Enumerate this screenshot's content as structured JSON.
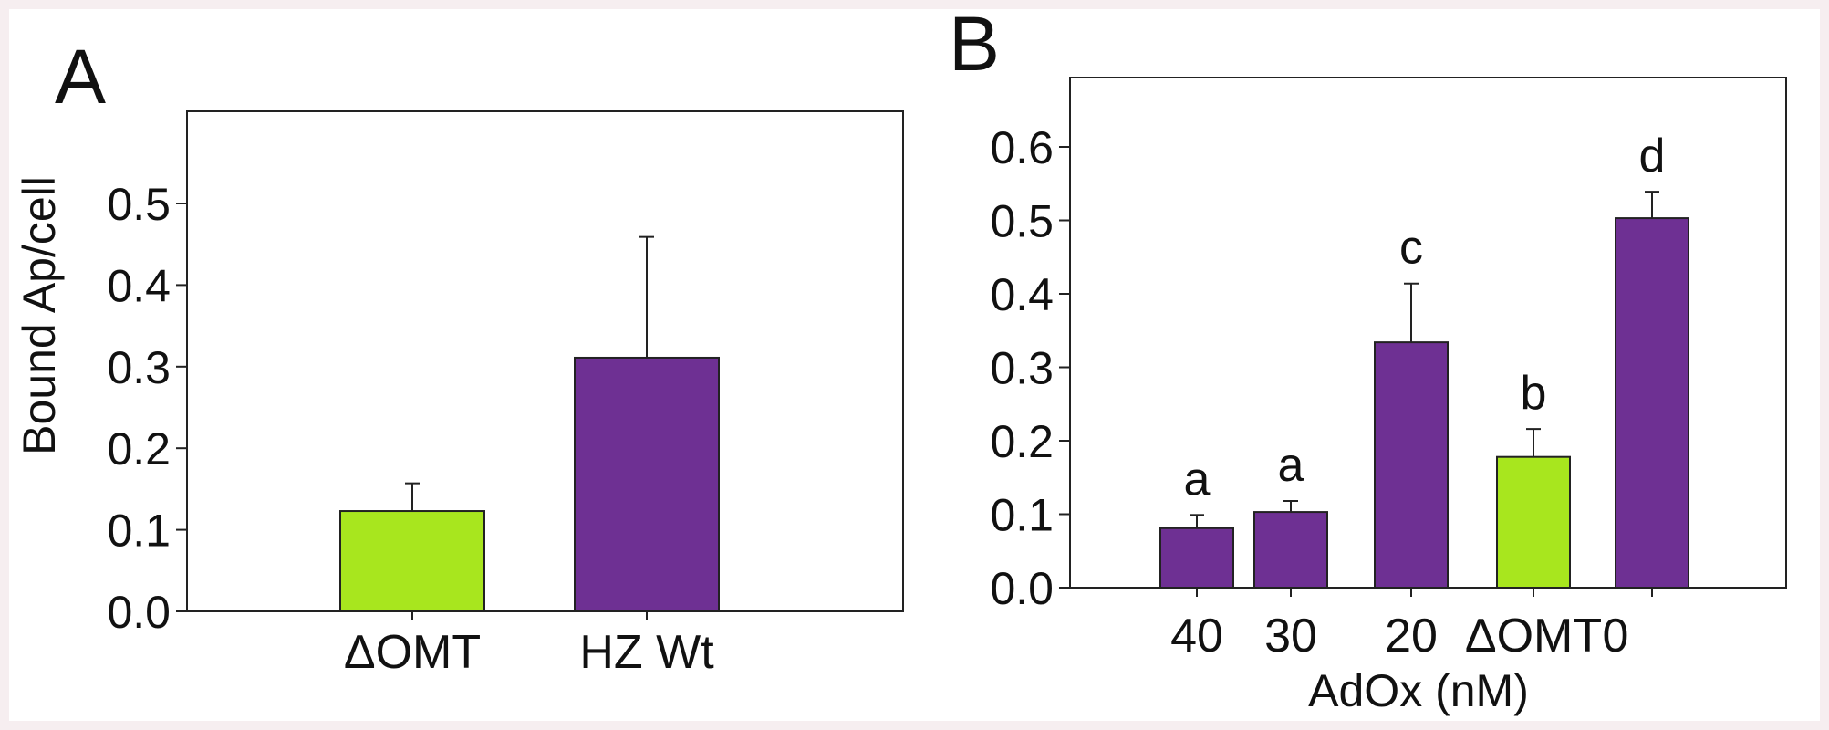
{
  "chart_data": [
    {
      "panel_label": "A",
      "type": "bar",
      "categories": [
        "ΔOMT",
        "HZ Wt"
      ],
      "values": [
        0.123,
        0.311
      ],
      "errors": [
        0.034,
        0.148
      ],
      "colors": [
        "#a8e61e",
        "#6e3093"
      ],
      "ylabel": "Bound Ap/cell",
      "xlabel": "",
      "ylim": [
        0,
        0.6
      ],
      "yticks": [
        "0.0",
        "0.1",
        "0.2",
        "0.3",
        "0.4",
        "0.5"
      ],
      "grid": false
    },
    {
      "panel_label": "B",
      "type": "bar",
      "categories": [
        "40",
        "30",
        "20",
        "ΔOMT",
        "0"
      ],
      "values": [
        0.081,
        0.103,
        0.334,
        0.178,
        0.503
      ],
      "errors": [
        0.018,
        0.015,
        0.08,
        0.038,
        0.036
      ],
      "significance": [
        "a",
        "a",
        "c",
        "b",
        "d"
      ],
      "colors": [
        "#6e3093",
        "#6e3093",
        "#6e3093",
        "#a8e61e",
        "#6e3093"
      ],
      "xlabel": "AdOx (nM)",
      "ylabel": "",
      "ylim": [
        0,
        0.7
      ],
      "yticks": [
        "0.0",
        "0.1",
        "0.2",
        "0.3",
        "0.4",
        "0.5",
        "0.6"
      ],
      "grid": false
    }
  ]
}
